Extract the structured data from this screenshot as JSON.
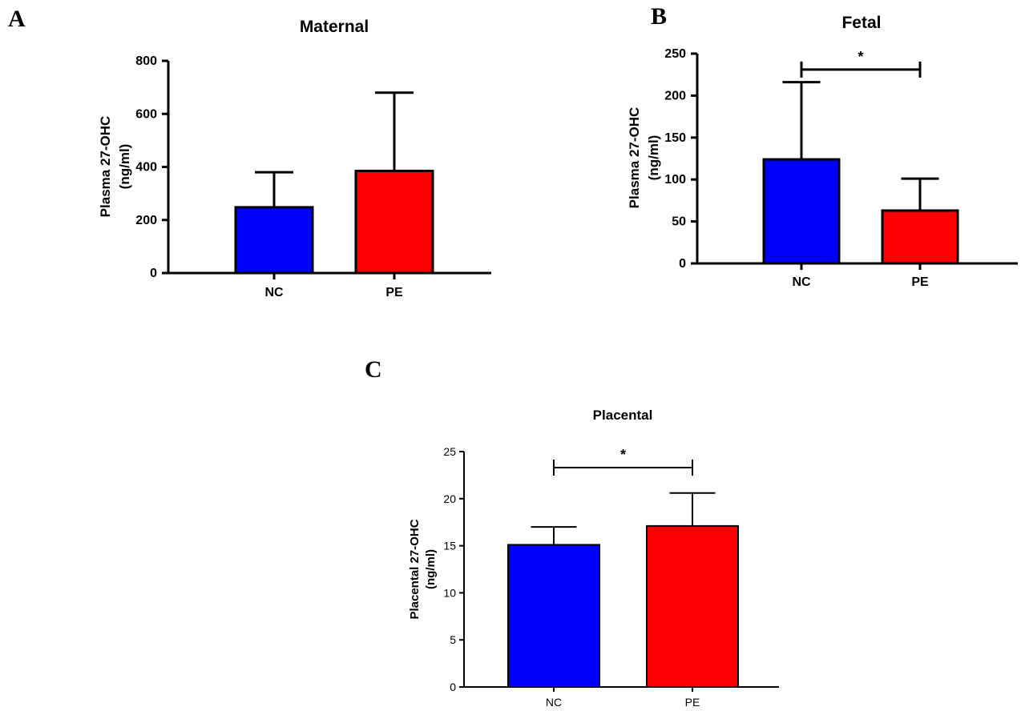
{
  "chart_data": [
    {
      "panel": "A",
      "type": "bar",
      "title": "Maternal",
      "ylabel_lines": [
        "Plasma 27-OHC",
        "(ng/ml)"
      ],
      "xlabel": "",
      "categories": [
        "NC",
        "PE"
      ],
      "values": [
        248,
        385
      ],
      "errors": [
        132,
        295
      ],
      "colors": [
        "#0000ff",
        "#ff0000"
      ],
      "ylim": [
        0,
        800
      ],
      "yticks": [
        0,
        200,
        400,
        600,
        800
      ],
      "significance": null
    },
    {
      "panel": "B",
      "type": "bar",
      "title": "Fetal",
      "ylabel_lines": [
        "Plasma 27-OHC",
        "(ng/ml)"
      ],
      "xlabel": "",
      "categories": [
        "NC",
        "PE"
      ],
      "values": [
        124,
        63
      ],
      "errors": [
        92,
        38
      ],
      "colors": [
        "#0000ff",
        "#ff0000"
      ],
      "ylim": [
        0,
        250
      ],
      "yticks": [
        0,
        50,
        100,
        150,
        200,
        250
      ],
      "significance": {
        "label": "*",
        "y": 231
      }
    },
    {
      "panel": "C",
      "type": "bar",
      "title": "Placental",
      "ylabel_lines": [
        "Placental 27-OHC",
        "(ng/ml)"
      ],
      "xlabel": "",
      "categories": [
        "NC",
        "PE"
      ],
      "values": [
        15.1,
        17.1
      ],
      "errors": [
        1.9,
        3.5
      ],
      "colors": [
        "#0000ff",
        "#ff0000"
      ],
      "ylim": [
        0,
        25
      ],
      "yticks": [
        0,
        5,
        10,
        15,
        20,
        25
      ],
      "significance": {
        "label": "*",
        "y": 23.3
      }
    }
  ]
}
